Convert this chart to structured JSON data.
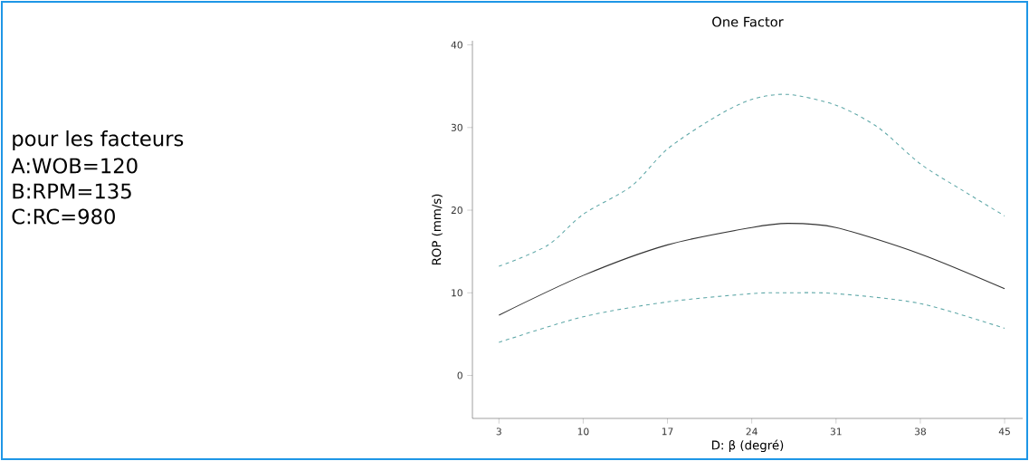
{
  "chart_data": {
    "type": "line",
    "title": "One Factor",
    "xlabel": "D: β (degré)",
    "ylabel": "ROP (mm/s)",
    "annotations": [
      "pour les facteurs",
      "A:WOB=120",
      "B:RPM=135",
      "C:RC=980"
    ],
    "xlim": [
      0.8,
      46.5
    ],
    "ylim": [
      -5.2,
      40.5
    ],
    "xticks": [
      3,
      10,
      17,
      24,
      31,
      38,
      45
    ],
    "yticks": [
      0,
      10,
      20,
      30,
      40
    ],
    "grid": false,
    "marker": "none",
    "series": [
      {
        "color": "#5fa8a8",
        "line_style": "dashed",
        "x": [
          3,
          7,
          10,
          14,
          17,
          21,
          24,
          27,
          31,
          34.5,
          38,
          41.5,
          45
        ],
        "values": [
          13.2,
          15.7,
          19.5,
          22.9,
          27.4,
          31.3,
          33.4,
          34.0,
          32.7,
          30.0,
          25.6,
          22.4,
          19.3
        ]
      },
      {
        "color": "#333333",
        "line_style": "solid",
        "x": [
          3,
          10,
          17,
          24,
          27,
          31,
          38,
          45
        ],
        "values": [
          7.3,
          12.1,
          15.8,
          17.9,
          18.4,
          17.9,
          14.7,
          10.5
        ]
      },
      {
        "color": "#5fa8a8",
        "line_style": "dashed",
        "x": [
          3,
          10,
          17,
          24,
          27,
          31,
          38,
          45
        ],
        "values": [
          4.0,
          7.1,
          8.9,
          9.9,
          10.0,
          9.9,
          8.7,
          5.7
        ]
      }
    ]
  }
}
